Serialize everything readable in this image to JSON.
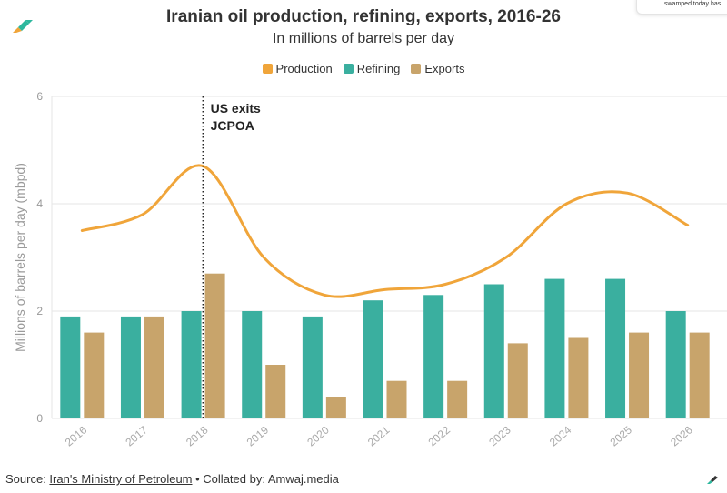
{
  "header": {
    "title": "Iranian oil production, refining, exports, 2016-26",
    "subtitle": "In millions of barrels per day",
    "popup_text": "swamped today has"
  },
  "colors": {
    "production": "#f0a53a",
    "refining": "#3aaf9f",
    "exports": "#c8a46b",
    "grid": "#e6e6e6",
    "annotation": "#222222",
    "brand_teal": "#2db89e",
    "brand_orange": "#f0a53a"
  },
  "footer": {
    "source_label": "Source: ",
    "source_link": "Iran's Ministry of Petroleum",
    "separator": " • ",
    "collated": "Collated by: Amwaj.media"
  },
  "chart_data": {
    "type": "bar",
    "title": "Iranian oil production, refining, exports, 2016-26",
    "subtitle": "In millions of barrels per day",
    "xlabel": "",
    "ylabel": "Millions of barrels per day (mbpd)",
    "ylim": [
      0,
      6
    ],
    "yticks": [
      0,
      2,
      4,
      6
    ],
    "grid": true,
    "legend_position": "top-center",
    "categories": [
      "2016",
      "2017",
      "2018",
      "2019",
      "2020",
      "2021",
      "2022",
      "2023",
      "2024",
      "2025",
      "2026"
    ],
    "series": [
      {
        "name": "Production",
        "type": "line",
        "values": [
          3.5,
          3.8,
          4.7,
          3.0,
          2.3,
          2.4,
          2.5,
          3.0,
          4.0,
          4.2,
          3.6
        ]
      },
      {
        "name": "Refining",
        "type": "bar",
        "values": [
          1.9,
          1.9,
          2.0,
          2.0,
          1.9,
          2.2,
          2.3,
          2.5,
          2.6,
          2.6,
          2.0
        ]
      },
      {
        "name": "Exports",
        "type": "bar",
        "values": [
          1.6,
          1.9,
          2.7,
          1.0,
          0.4,
          0.7,
          0.7,
          1.4,
          1.5,
          1.6,
          1.6
        ]
      }
    ],
    "annotation": {
      "category": "2018",
      "lines": [
        "US exits",
        "JCPOA"
      ]
    }
  }
}
